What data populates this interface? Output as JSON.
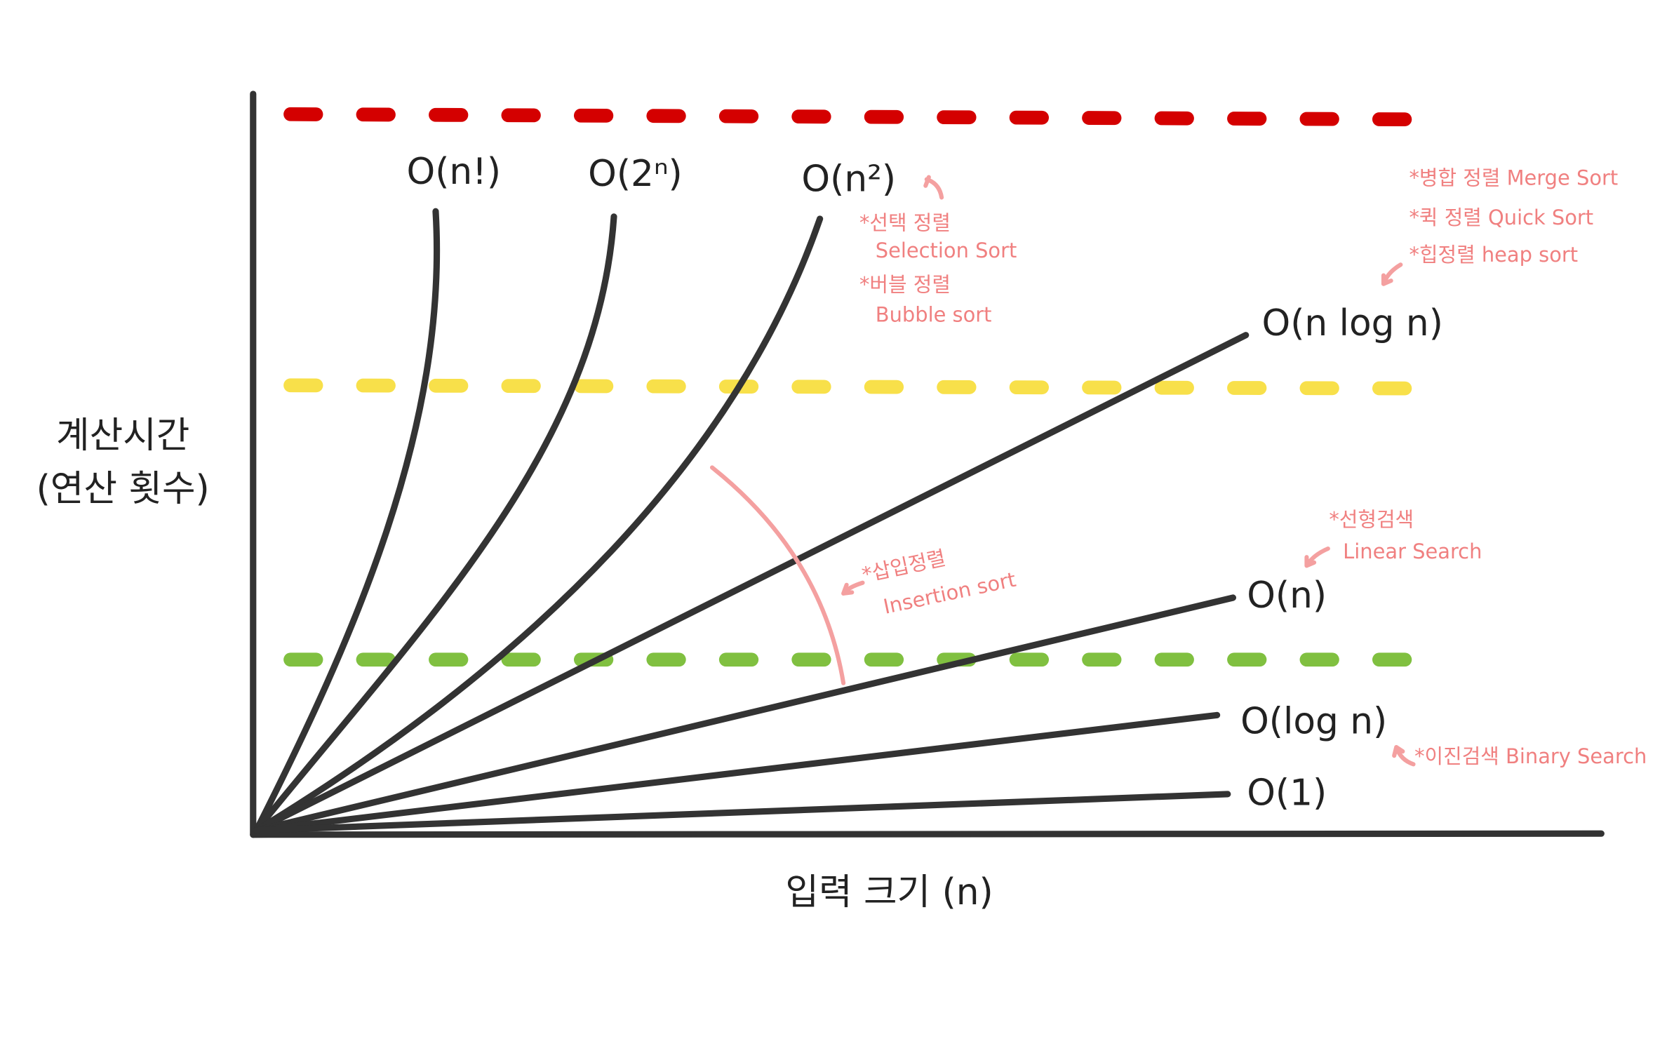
{
  "y_axis_label": [
    "계산시간",
    "(연산 횟수)"
  ],
  "x_axis_label": "입력 크기 (n)",
  "curves": [
    {
      "label": "O(n!)"
    },
    {
      "label": "O(2ⁿ)"
    },
    {
      "label": "O(n²)"
    },
    {
      "label": "O(n log n)"
    },
    {
      "label": "O(n)"
    },
    {
      "label": "O(log n)"
    },
    {
      "label": "O(1)"
    }
  ],
  "annotations": [
    {
      "lines": [
        "*선택 정렬",
        "Selection Sort",
        "*버블 정렬",
        "Bubble sort"
      ]
    },
    {
      "lines": [
        "*병합 정렬  Merge Sort",
        "*퀵 정렬  Quick Sort",
        "*힙정렬  heap sort"
      ]
    },
    {
      "lines": [
        "*삽입정렬",
        "Insertion sort"
      ]
    },
    {
      "lines": [
        "*선형검색",
        "Linear Search"
      ]
    },
    {
      "lines": [
        "*이진검색 Binary Search"
      ]
    }
  ]
}
